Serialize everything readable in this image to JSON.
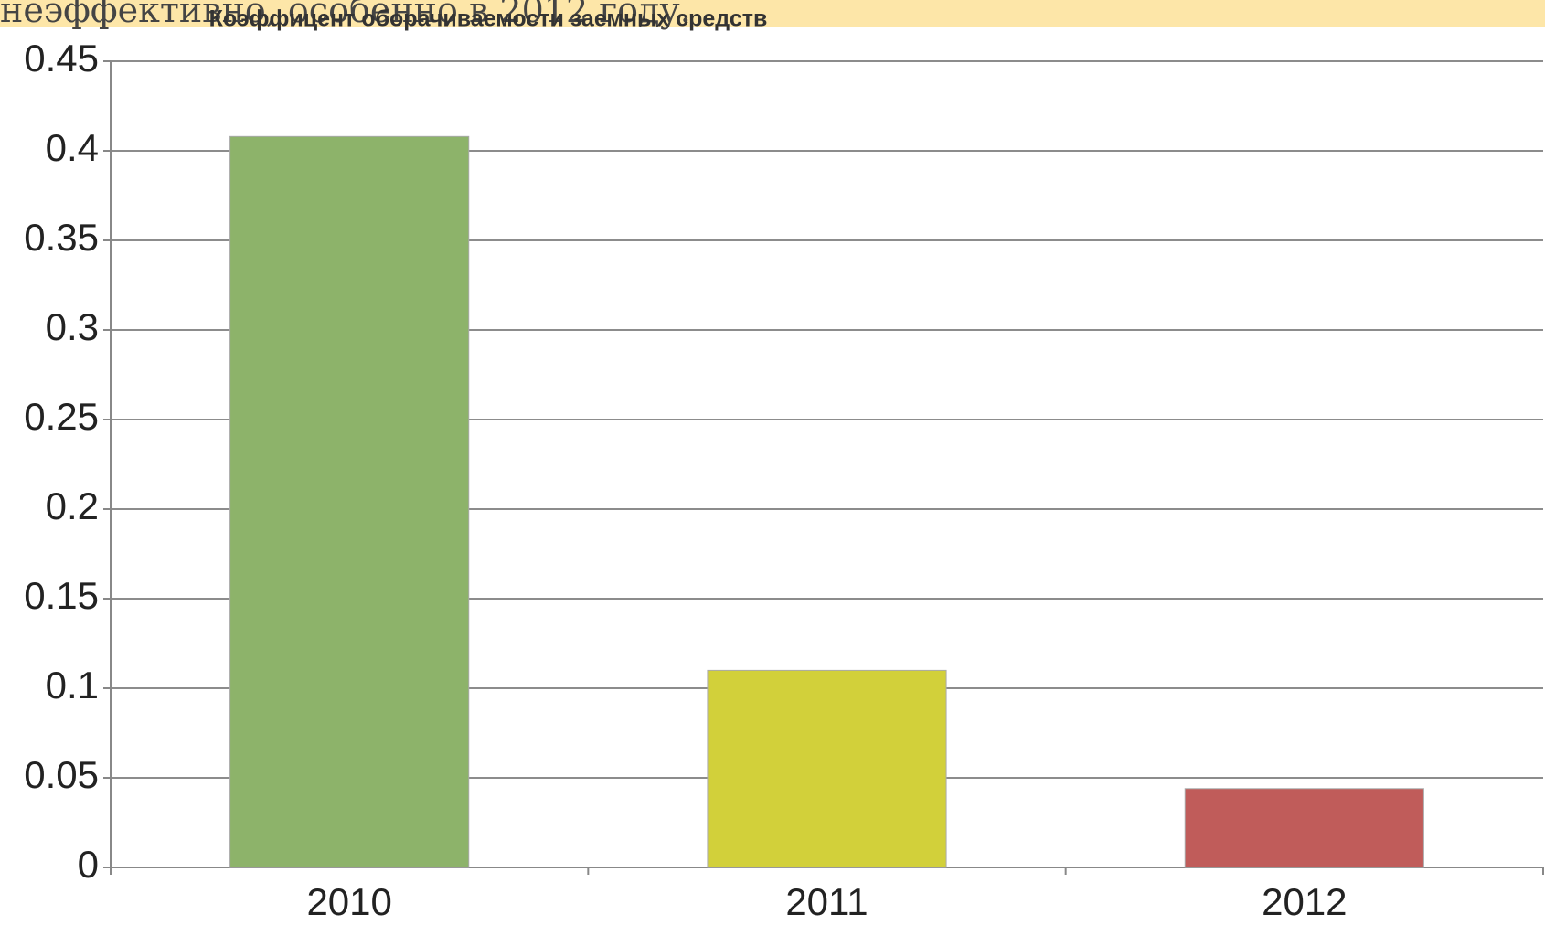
{
  "page_text": "неэффективно, особенно в 2012 году.",
  "chart_data": {
    "type": "bar",
    "title": "Коэффицент оборачиваемости заемных средств",
    "categories": [
      "2010",
      "2011",
      "2012"
    ],
    "values": [
      0.408,
      0.11,
      0.044
    ],
    "colors": [
      "#8db36a",
      "#d2d03a",
      "#c05c5a"
    ],
    "ylim": [
      0,
      0.45
    ],
    "yticks": [
      0,
      0.05,
      0.1,
      0.15,
      0.2,
      0.25,
      0.3,
      0.35,
      0.4,
      0.45
    ],
    "grid": true
  }
}
